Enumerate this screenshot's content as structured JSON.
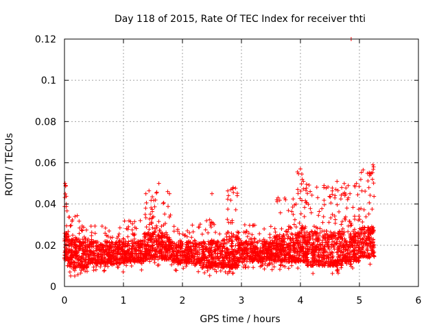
{
  "chart_data": {
    "type": "scatter",
    "title": "Day 118 of 2015, Rate Of TEC Index for receiver thti",
    "xlabel": "GPS time / hours",
    "ylabel": "ROTI / TECUs",
    "xlim": [
      0,
      6
    ],
    "ylim": [
      0,
      0.12
    ],
    "xticks": [
      0,
      1,
      2,
      3,
      4,
      5,
      6
    ],
    "xtick_labels": [
      "0",
      "1",
      "2",
      "3",
      "4",
      "5",
      "6"
    ],
    "yticks": [
      0,
      0.02,
      0.04,
      0.06,
      0.08,
      0.1,
      0.12
    ],
    "ytick_labels": [
      "0",
      "0.02",
      "0.04",
      "0.06",
      "0.08",
      "0.1",
      "0.12"
    ],
    "grid": true,
    "marker": "+",
    "series_color": "#ff0000",
    "x_extent": [
      0,
      5.25
    ],
    "density_profile": {
      "description": "Dense band of ROTI values sampled across GPS time (hours) per segment",
      "segments": [
        {
          "x": [
            0.0,
            0.05
          ],
          "y_min": 0.008,
          "y_max": 0.05,
          "count": 60
        },
        {
          "x": [
            0.05,
            0.4
          ],
          "y_min": 0.005,
          "y_max": 0.035,
          "count": 260
        },
        {
          "x": [
            0.4,
            1.0
          ],
          "y_min": 0.007,
          "y_max": 0.03,
          "count": 380
        },
        {
          "x": [
            1.0,
            1.35
          ],
          "y_min": 0.008,
          "y_max": 0.032,
          "count": 220
        },
        {
          "x": [
            1.35,
            1.8
          ],
          "y_min": 0.009,
          "y_max": 0.047,
          "count": 320
        },
        {
          "x": [
            1.8,
            2.3
          ],
          "y_min": 0.007,
          "y_max": 0.03,
          "count": 280
        },
        {
          "x": [
            2.3,
            2.75
          ],
          "y_min": 0.005,
          "y_max": 0.033,
          "count": 280
        },
        {
          "x": [
            2.75,
            2.95
          ],
          "y_min": 0.005,
          "y_max": 0.048,
          "count": 160
        },
        {
          "x": [
            2.95,
            3.55
          ],
          "y_min": 0.008,
          "y_max": 0.03,
          "count": 360
        },
        {
          "x": [
            3.55,
            3.95
          ],
          "y_min": 0.008,
          "y_max": 0.043,
          "count": 280
        },
        {
          "x": [
            3.95,
            4.1
          ],
          "y_min": 0.008,
          "y_max": 0.057,
          "count": 140
        },
        {
          "x": [
            4.1,
            4.7
          ],
          "y_min": 0.006,
          "y_max": 0.05,
          "count": 420
        },
        {
          "x": [
            4.7,
            5.0
          ],
          "y_min": 0.008,
          "y_max": 0.05,
          "count": 220
        },
        {
          "x": [
            5.0,
            5.25
          ],
          "y_min": 0.01,
          "y_max": 0.058,
          "count": 180
        }
      ]
    },
    "points": [
      [
        4.86,
        0.12
      ],
      [
        5.23,
        0.059
      ],
      [
        5.24,
        0.058
      ],
      [
        4.0,
        0.057
      ],
      [
        0.01,
        0.05
      ],
      [
        0.02,
        0.049
      ],
      [
        1.6,
        0.05
      ],
      [
        4.62,
        0.051
      ],
      [
        4.95,
        0.05
      ],
      [
        5.2,
        0.055
      ],
      [
        1.75,
        0.046
      ],
      [
        1.78,
        0.045
      ],
      [
        2.86,
        0.048
      ],
      [
        2.82,
        0.047
      ],
      [
        4.03,
        0.052
      ],
      [
        4.05,
        0.051
      ],
      [
        4.4,
        0.049
      ],
      [
        4.7,
        0.048
      ],
      [
        5.22,
        0.052
      ],
      [
        1.38,
        0.045
      ],
      [
        0.03,
        0.04
      ],
      [
        3.62,
        0.043
      ],
      [
        3.6,
        0.042
      ],
      [
        2.5,
        0.045
      ],
      [
        4.92,
        0.049
      ],
      [
        4.84,
        0.045
      ]
    ]
  }
}
